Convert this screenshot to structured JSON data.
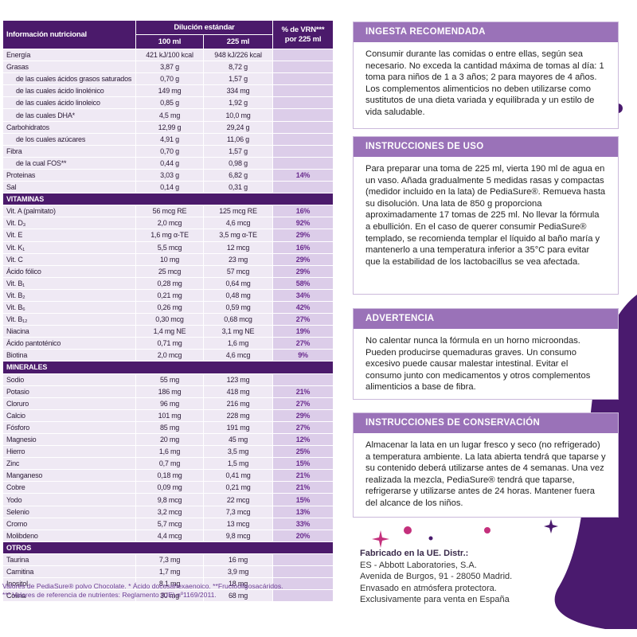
{
  "table": {
    "header": {
      "title": "Información nutricional",
      "group": "Dilución estándar",
      "col1": "100 ml",
      "col2": "225 ml",
      "vrn": "% de VRN*** por 225 ml"
    },
    "sections": [
      {
        "rows": [
          [
            "Energía",
            "421 kJ/100 kcal",
            "948 kJ/226 kcal"
          ],
          [
            "Grasas",
            "3,87 g",
            "8,72 g"
          ],
          [
            "de las cuales ácidos grasos saturados",
            "0,70 g",
            "1,57 g"
          ],
          [
            "de las cuales ácido linolénico",
            "149 mg",
            "334 mg"
          ],
          [
            "de las cuales ácido linoleico",
            "0,85 g",
            "1,92 g"
          ],
          [
            "de las cuales DHA*",
            "4,5 mg",
            "10,0 mg"
          ],
          [
            "Carbohidratos",
            "12,99 g",
            "29,24 g"
          ],
          [
            "de los cuales azúcares",
            "4,91 g",
            "11,06 g"
          ],
          [
            "Fibra",
            "0,70 g",
            "1,57 g"
          ],
          [
            "de la cual FOS**",
            "0,44 g",
            "0,98 g"
          ],
          [
            "Proteinas",
            "3,03 g",
            "6,82 g",
            "14%"
          ],
          [
            "Sal",
            "0,14 g",
            "0,31 g"
          ]
        ]
      },
      {
        "title": "VITAMINAS",
        "rows": [
          [
            "Vit. A (palmitato)",
            "56 mcg RE",
            "125 mcg RE",
            "16%"
          ],
          [
            "Vit. D₃",
            "2,0 mcg",
            "4,6 mcg",
            "92%"
          ],
          [
            "Vit. E",
            "1,6 mg α-TE",
            "3,5 mg α-TE",
            "29%"
          ],
          [
            "Vit. K₁",
            "5,5 mcg",
            "12 mcg",
            "16%"
          ],
          [
            "Vit. C",
            "10 mg",
            "23 mg",
            "29%"
          ],
          [
            "Ácido fólico",
            "25 mcg",
            "57 mcg",
            "29%"
          ],
          [
            "Vit. B₁",
            "0,28 mg",
            "0,64 mg",
            "58%"
          ],
          [
            "Vit. B₂",
            "0,21 mg",
            "0,48 mg",
            "34%"
          ],
          [
            "Vit. B₆",
            "0,26 mg",
            "0,59 mg",
            "42%"
          ],
          [
            "Vit. B₁₂",
            "0,30 mcg",
            "0,68 mcg",
            "27%"
          ],
          [
            "Niacina",
            "1,4 mg NE",
            "3,1 mg NE",
            "19%"
          ],
          [
            "Ácido pantoténico",
            "0,71 mg",
            "1,6 mg",
            "27%"
          ],
          [
            "Biotina",
            "2,0 mcg",
            "4,6 mcg",
            "9%"
          ]
        ]
      },
      {
        "title": "MINERALES",
        "rows": [
          [
            "Sodio",
            "55 mg",
            "123 mg"
          ],
          [
            "Potasio",
            "186 mg",
            "418 mg",
            "21%"
          ],
          [
            "Cloruro",
            "96 mg",
            "216 mg",
            "27%"
          ],
          [
            "Calcio",
            "101 mg",
            "228 mg",
            "29%"
          ],
          [
            "Fósforo",
            "85 mg",
            "191 mg",
            "27%"
          ],
          [
            "Magnesio",
            "20 mg",
            "45 mg",
            "12%"
          ],
          [
            "Hierro",
            "1,6 mg",
            "3,5 mg",
            "25%"
          ],
          [
            "Zinc",
            "0,7 mg",
            "1,5 mg",
            "15%"
          ],
          [
            "Manganeso",
            "0,18 mg",
            "0,41 mg",
            "21%"
          ],
          [
            "Cobre",
            "0,09 mg",
            "0,21 mg",
            "21%"
          ],
          [
            "Yodo",
            "9,8 mcg",
            "22 mcg",
            "15%"
          ],
          [
            "Selenio",
            "3,2 mcg",
            "7,3 mcg",
            "13%"
          ],
          [
            "Cromo",
            "5,7 mcg",
            "13 mcg",
            "33%"
          ],
          [
            "Molibdeno",
            "4,4 mcg",
            "9,8 mcg",
            "20%"
          ]
        ]
      },
      {
        "title": "OTROS",
        "rows": [
          [
            "Taurina",
            "7,3 mg",
            "16 mg"
          ],
          [
            "Carnitina",
            "1,7 mg",
            "3,9 mg"
          ],
          [
            "Inositol",
            "8,1 mg",
            "18 mg"
          ],
          [
            "Colina",
            "30 mg",
            "68 mg"
          ]
        ]
      }
    ]
  },
  "footnotes": [
    "Valores de PediaSure® polvo Chocolate. * Ácido docosahexaenoico. **Fructooligosacáridos.",
    "*** Valores de referencia de nutrientes: Reglamento (UE) nº1169/2011."
  ],
  "boxes": [
    {
      "title": "INGESTA RECOMENDADA",
      "text": "Consumir durante las comidas o entre ellas, según sea necesario. No exceda la cantidad máxima de tomas al día: 1 toma para niños de 1 a 3 años; 2 para mayores de 4 años. Los complementos alimenticios no deben utilizarse como sustitutos de una dieta variada y equilibrada y un estilo de vida saludable."
    },
    {
      "title": "INSTRUCCIONES DE USO",
      "text": "Para preparar una toma de 225 ml, vierta 190 ml de agua en un vaso. Añada gradualmente 5 medidas rasas y compactas (medidor incluido en la lata) de PediaSure®. Remueva hasta su disolución. Una lata de 850 g proporciona aproximadamente 17 tomas de 225 ml. No llevar la fórmula a ebullición. En el caso de querer consumir PediaSure® templado, se recomienda templar el líquido al baño maría y mantenerlo a una temperatura inferior a 35°C para evitar que la estabilidad de los lactobacillus se vea afectada."
    },
    {
      "title": "ADVERTENCIA",
      "text": "No calentar nunca la fórmula en un horno microondas. Pueden producirse quemaduras graves. Un consumo excesivo puede causar malestar intestinal. Evitar el consumo junto con medicamentos y otros complementos alimenticios a base de fibra."
    },
    {
      "title": "INSTRUCCIONES DE CONSERVACIÓN",
      "text": "Almacenar la lata en un lugar fresco y seco (no refrigerado) a temperatura ambiente. La lata abierta tendrá que taparse y su contenido deberá utilizarse antes de 4 semanas. Una vez realizada la mezcla, PediaSure® tendrá que taparse, refrigerarse y utilizarse antes de 24 horas. Mantener fuera del alcance de los niños."
    }
  ],
  "footer": {
    "title": "Fabricado en la UE. Distr.:",
    "lines": [
      "ES - Abbott Laboratories, S.A.",
      "Avenida de Burgos, 91 - 28050 Madrid.",
      "Envasado en atmósfera protectora.",
      "Exclusivamente para venta en España"
    ]
  }
}
